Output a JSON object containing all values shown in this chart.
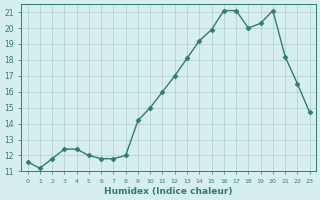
{
  "x": [
    0,
    1,
    2,
    3,
    4,
    5,
    6,
    7,
    8,
    9,
    10,
    11,
    12,
    13,
    14,
    15,
    16,
    17,
    18,
    19,
    20,
    21,
    22,
    23
  ],
  "y": [
    11.6,
    11.2,
    11.8,
    12.4,
    12.4,
    12.0,
    11.8,
    11.8,
    12.0,
    14.2,
    15.0,
    16.0,
    17.0,
    18.1,
    19.2,
    19.9,
    21.1,
    21.1,
    20.0,
    20.3,
    21.1,
    18.2,
    16.5,
    14.7
  ],
  "xlabel": "Humidex (Indice chaleur)",
  "xlim": [
    -0.5,
    23.5
  ],
  "ylim": [
    11,
    21.5
  ],
  "yticks": [
    11,
    12,
    13,
    14,
    15,
    16,
    17,
    18,
    19,
    20,
    21
  ],
  "xticks": [
    0,
    1,
    2,
    3,
    4,
    5,
    6,
    7,
    8,
    9,
    10,
    11,
    12,
    13,
    14,
    15,
    16,
    17,
    18,
    19,
    20,
    21,
    22,
    23
  ],
  "line_color": "#2e7d6e",
  "marker_color": "#2e7d6e",
  "bg_color": "#d6eeee",
  "grid_color": "#b0cccc",
  "axis_color": "#2e7d6e",
  "tick_color": "#2e7d6e",
  "label_color": "#2e7d6e"
}
